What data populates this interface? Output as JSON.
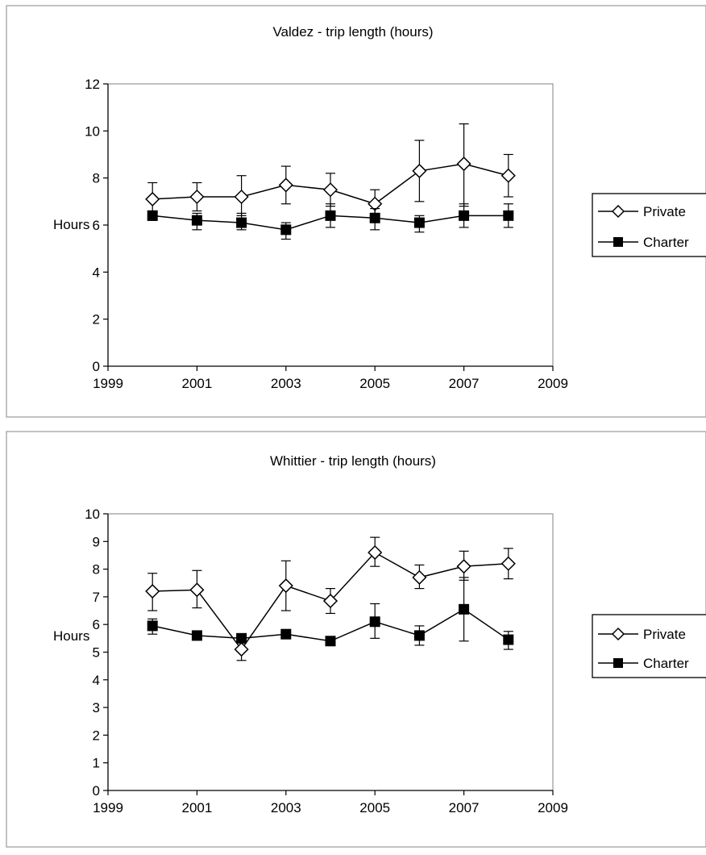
{
  "chart_data": [
    {
      "type": "line",
      "title": "Valdez - trip length (hours)",
      "xlabel": "",
      "ylabel": "Hours",
      "xlim": [
        1999,
        2009
      ],
      "ylim": [
        0,
        12
      ],
      "xticks": [
        1999,
        2001,
        2003,
        2005,
        2007,
        2009
      ],
      "yticks": [
        0,
        2,
        4,
        6,
        8,
        10,
        12
      ],
      "grid": false,
      "legend_position": "right",
      "series": [
        {
          "name": "Private",
          "marker": "open-diamond",
          "x": [
            2000,
            2001,
            2002,
            2003,
            2004,
            2005,
            2006,
            2007,
            2008
          ],
          "y": [
            7.1,
            7.2,
            7.2,
            7.7,
            7.5,
            6.9,
            8.3,
            8.6,
            8.1
          ],
          "err_low": [
            6.5,
            6.6,
            6.4,
            6.9,
            6.8,
            6.4,
            7.0,
            6.8,
            7.2
          ],
          "err_high": [
            7.8,
            7.8,
            8.1,
            8.5,
            8.2,
            7.5,
            9.6,
            10.3,
            9.0
          ]
        },
        {
          "name": "Charter",
          "marker": "filled-square",
          "x": [
            2000,
            2001,
            2002,
            2003,
            2004,
            2005,
            2006,
            2007,
            2008
          ],
          "y": [
            6.4,
            6.2,
            6.1,
            5.8,
            6.4,
            6.3,
            6.1,
            6.4,
            6.4
          ],
          "err_low": [
            6.2,
            5.8,
            5.8,
            5.4,
            5.9,
            5.8,
            5.7,
            5.9,
            5.9
          ],
          "err_high": [
            6.6,
            6.5,
            6.5,
            6.1,
            6.9,
            6.7,
            6.4,
            6.9,
            6.9
          ]
        }
      ]
    },
    {
      "type": "line",
      "title": "Whittier - trip length (hours)",
      "xlabel": "",
      "ylabel": "Hours",
      "xlim": [
        1999,
        2009
      ],
      "ylim": [
        0,
        10
      ],
      "xticks": [
        1999,
        2001,
        2003,
        2005,
        2007,
        2009
      ],
      "yticks": [
        0,
        1,
        2,
        3,
        4,
        5,
        6,
        7,
        8,
        9,
        10
      ],
      "grid": false,
      "legend_position": "right",
      "series": [
        {
          "name": "Private",
          "marker": "open-diamond",
          "x": [
            2000,
            2001,
            2002,
            2003,
            2004,
            2005,
            2006,
            2007,
            2008
          ],
          "y": [
            7.2,
            7.25,
            5.1,
            7.4,
            6.85,
            8.6,
            7.7,
            8.1,
            8.2
          ],
          "err_low": [
            6.5,
            6.6,
            4.7,
            6.5,
            6.4,
            8.1,
            7.3,
            7.6,
            7.65
          ],
          "err_high": [
            7.85,
            7.95,
            5.5,
            8.3,
            7.3,
            9.15,
            8.15,
            8.65,
            8.75
          ]
        },
        {
          "name": "Charter",
          "marker": "filled-square",
          "x": [
            2000,
            2001,
            2002,
            2003,
            2004,
            2005,
            2006,
            2007,
            2008
          ],
          "y": [
            5.95,
            5.6,
            5.5,
            5.65,
            5.4,
            6.1,
            5.6,
            6.55,
            5.45
          ],
          "err_low": [
            5.65,
            5.6,
            5.5,
            5.65,
            5.4,
            5.5,
            5.25,
            5.4,
            5.1
          ],
          "err_high": [
            6.2,
            5.6,
            5.5,
            5.65,
            5.4,
            6.75,
            5.95,
            7.7,
            5.75
          ]
        }
      ]
    }
  ]
}
